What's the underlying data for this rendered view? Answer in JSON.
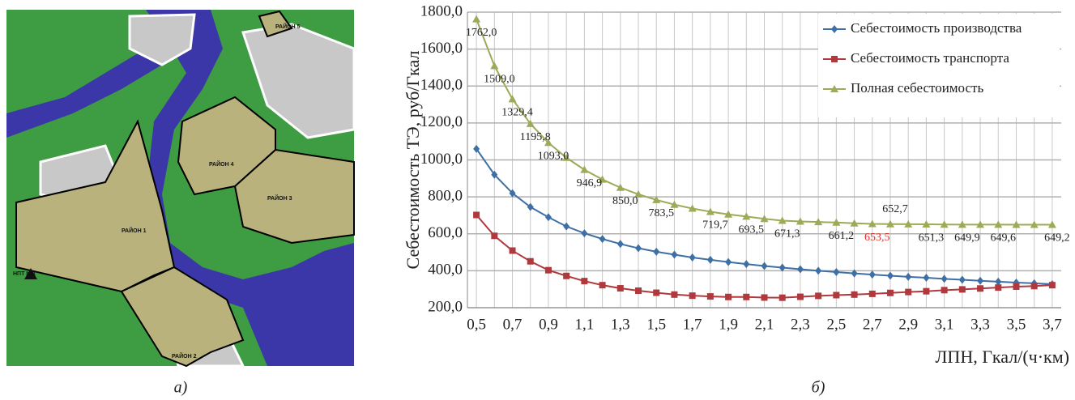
{
  "map": {
    "labels": [
      "РАЙОН 1",
      "РАЙОН 2",
      "РАЙОН 3",
      "РАЙОН 4",
      "РАЙОН 5",
      "НПТ №1"
    ],
    "caption": "а)"
  },
  "chart_data": {
    "type": "line",
    "caption": "б)",
    "y_label": "Себестоимость ТЭ, руб/Гкал",
    "x_label": "ЛПН, Гкал/(ч·км)",
    "categories": [
      "0,5",
      null,
      "0,7",
      null,
      "0,9",
      null,
      "1,1",
      null,
      "1,3",
      null,
      "1,5",
      null,
      "1,7",
      null,
      "1,9",
      null,
      "2,1",
      null,
      "2,3",
      null,
      "2,5",
      null,
      "2,7",
      null,
      "2,9",
      null,
      "3,1",
      null,
      "3,3",
      null,
      "3,5",
      null,
      "3,7"
    ],
    "ylim": [
      200,
      1800
    ],
    "yticks": [
      {
        "value": 200,
        "label": "200,0"
      },
      {
        "value": 400,
        "label": "400,0"
      },
      {
        "value": 600,
        "label": "600,0"
      },
      {
        "value": 800,
        "label": "800,0"
      },
      {
        "value": 1000,
        "label": "1000,0"
      },
      {
        "value": 1200,
        "label": "1200,0"
      },
      {
        "value": 1400,
        "label": "1400,0"
      },
      {
        "value": 1600,
        "label": "1600,0"
      },
      {
        "value": 1800,
        "label": "1800,0"
      }
    ],
    "grid": true,
    "legend": "upper right",
    "series": [
      {
        "name": "Себестоимость производства",
        "color": "#3e6fa5",
        "marker": "diamond",
        "values": [
          1060,
          920,
          820,
          745,
          690,
          640,
          603,
          572,
          545,
          522,
          503,
          487,
          472,
          459,
          447,
          436,
          426,
          417,
          408,
          400,
          393,
          386,
          379,
          373,
          367,
          362,
          356,
          351,
          346,
          341,
          336,
          332,
          327
        ]
      },
      {
        "name": "Себестоимость транспорта",
        "color": "#b0393d",
        "marker": "square",
        "values": [
          702,
          589,
          509,
          451,
          403,
          372,
          344,
          322,
          305,
          292,
          281,
          271,
          265,
          261,
          258,
          258,
          255,
          254,
          259,
          264,
          268,
          271,
          275,
          280,
          285,
          289,
          295,
          299,
          304,
          309,
          314,
          317,
          322
        ]
      },
      {
        "name": "Полная себестоимость",
        "color": "#9daa58",
        "marker": "triangle",
        "values": [
          1762.0,
          1509.0,
          1329.4,
          1195.8,
          1093.0,
          1012,
          946.9,
          894,
          850.0,
          814,
          783.5,
          758,
          737,
          719.7,
          705,
          693.5,
          681,
          671.3,
          667,
          664,
          661.2,
          657,
          653.5,
          652.7,
          652,
          651.3,
          650.5,
          649.9,
          649.7,
          649.6,
          649.5,
          649.3,
          649.2
        ],
        "value_labels": [
          "1762,0",
          "1509,0",
          "1329,4",
          "1195,8",
          "1093,0",
          null,
          "946,9",
          null,
          "850,0",
          null,
          "783,5",
          null,
          null,
          "719,7",
          null,
          "693,5",
          null,
          "671,3",
          null,
          null,
          "661,2",
          null,
          "653,5",
          "652,7",
          null,
          "651,3",
          null,
          "649,9",
          null,
          "649,6",
          null,
          null,
          "649,2"
        ],
        "highlight": {
          "index": 22,
          "color": "#e0302c"
        }
      }
    ]
  }
}
